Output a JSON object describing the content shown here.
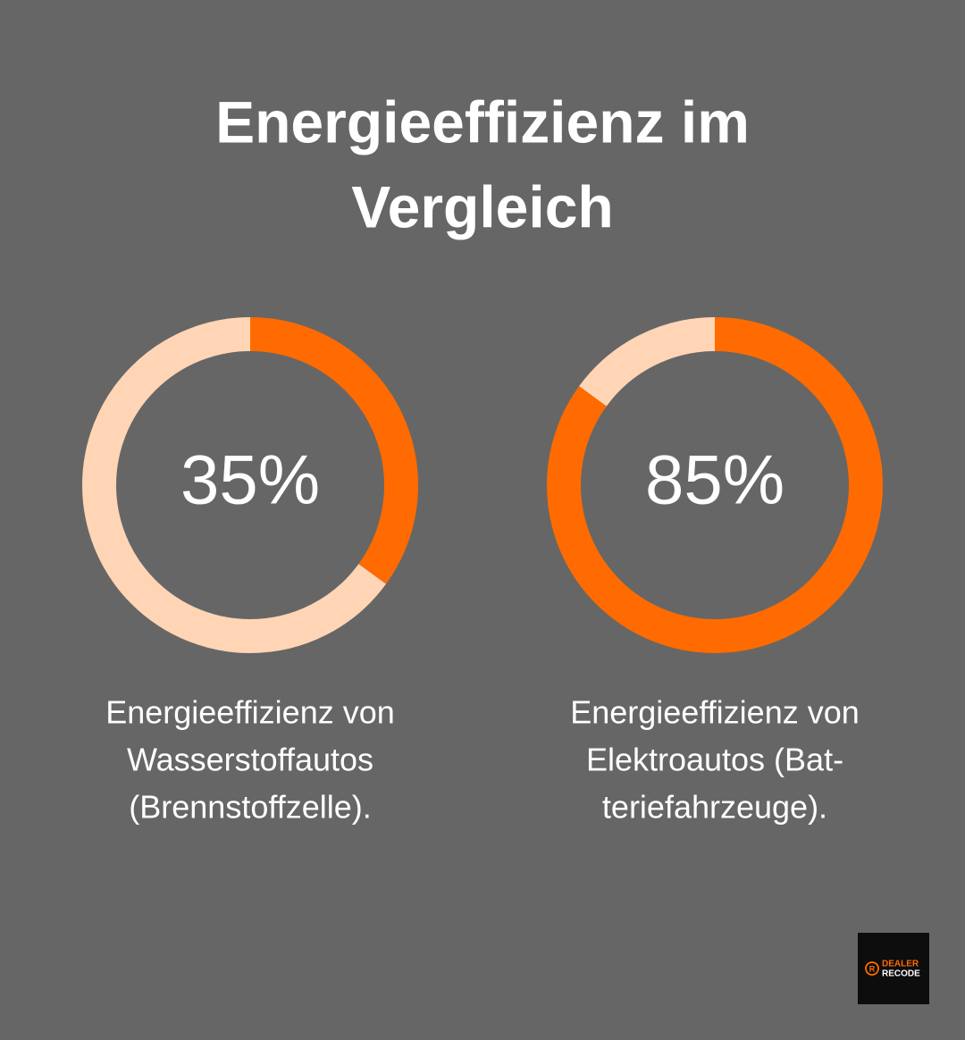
{
  "title": [
    "Energieeffizienz im",
    "Vergleich"
  ],
  "chart_data": [
    {
      "type": "donut",
      "values": [
        35,
        65
      ],
      "colors": [
        "#ff6b00",
        "#ffd5b5"
      ],
      "center_label": "35%",
      "caption": [
        "Energieeffizienz von",
        "Wasserstoffautos",
        "(Brennstoffzelle)."
      ]
    },
    {
      "type": "donut",
      "values": [
        85,
        15
      ],
      "colors": [
        "#ff6b00",
        "#ffd5b5"
      ],
      "center_label": "85%",
      "caption": [
        "Energieeffizienz von",
        "Elektroautos (Bat-",
        "teriefahrzeuge)."
      ]
    }
  ],
  "logo": [
    "DEALER",
    "RECODE"
  ]
}
